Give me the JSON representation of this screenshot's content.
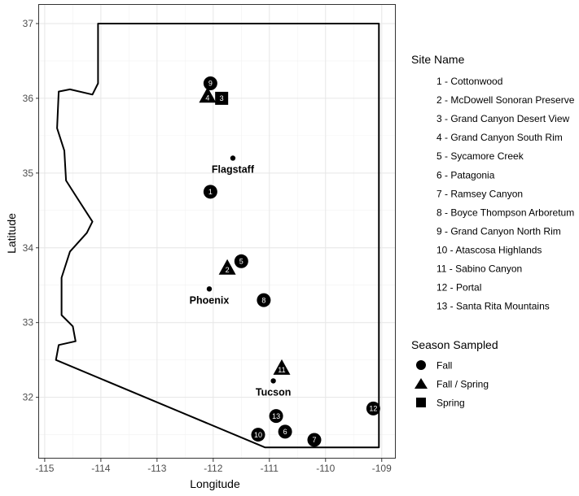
{
  "chart_data": {
    "type": "scatter",
    "xlabel": "Longitude",
    "ylabel": "Latitude",
    "xlim": [
      -115.1,
      -108.75
    ],
    "ylim": [
      31.18,
      37.25
    ],
    "xticks": [
      -115,
      -114,
      -113,
      -112,
      -111,
      -110,
      -109
    ],
    "yticks": [
      32,
      33,
      34,
      35,
      36,
      37
    ],
    "grid": true,
    "colors": {
      "outline": "#000000",
      "grid_major": "#e6e6e6",
      "grid_minor": "#f2f2f2",
      "panel_border": "#333333",
      "marker": "#000000",
      "marker_text": "#ffffff"
    },
    "state_outline": [
      [
        -109.05,
        37.0
      ],
      [
        -114.05,
        37.0
      ],
      [
        -114.05,
        36.2
      ],
      [
        -114.15,
        36.05
      ],
      [
        -114.55,
        36.12
      ],
      [
        -114.75,
        36.09
      ],
      [
        -114.78,
        35.6
      ],
      [
        -114.65,
        35.3
      ],
      [
        -114.62,
        34.9
      ],
      [
        -114.45,
        34.7
      ],
      [
        -114.15,
        34.35
      ],
      [
        -114.25,
        34.2
      ],
      [
        -114.55,
        33.95
      ],
      [
        -114.7,
        33.6
      ],
      [
        -114.7,
        33.1
      ],
      [
        -114.5,
        32.95
      ],
      [
        -114.45,
        32.75
      ],
      [
        -114.75,
        32.7
      ],
      [
        -114.8,
        32.5
      ],
      [
        -111.08,
        31.33
      ],
      [
        -109.05,
        31.33
      ],
      [
        -109.05,
        37.0
      ]
    ],
    "cities": [
      {
        "name": "Flagstaff",
        "lon": -111.65,
        "lat": 35.2
      },
      {
        "name": "Phoenix",
        "lon": -112.07,
        "lat": 33.45
      },
      {
        "name": "Tucson",
        "lon": -110.93,
        "lat": 32.22
      }
    ],
    "sites": [
      {
        "id": "1",
        "lon": -112.05,
        "lat": 34.75,
        "season": "Fall"
      },
      {
        "id": "2",
        "lon": -111.75,
        "lat": 33.72,
        "season": "Fall / Spring"
      },
      {
        "id": "3",
        "lon": -111.85,
        "lat": 36.0,
        "season": "Spring"
      },
      {
        "id": "4",
        "lon": -112.1,
        "lat": 36.02,
        "season": "Fall / Spring"
      },
      {
        "id": "5",
        "lon": -111.5,
        "lat": 33.82,
        "season": "Fall"
      },
      {
        "id": "6",
        "lon": -110.72,
        "lat": 31.54,
        "season": "Fall"
      },
      {
        "id": "7",
        "lon": -110.2,
        "lat": 31.43,
        "season": "Fall"
      },
      {
        "id": "8",
        "lon": -111.1,
        "lat": 33.3,
        "season": "Fall"
      },
      {
        "id": "9",
        "lon": -112.05,
        "lat": 36.2,
        "season": "Fall"
      },
      {
        "id": "10",
        "lon": -111.2,
        "lat": 31.5,
        "season": "Fall"
      },
      {
        "id": "11",
        "lon": -110.78,
        "lat": 32.38,
        "season": "Fall / Spring"
      },
      {
        "id": "12",
        "lon": -109.15,
        "lat": 31.85,
        "season": "Fall"
      },
      {
        "id": "13",
        "lon": -110.88,
        "lat": 31.75,
        "season": "Fall"
      }
    ]
  },
  "legend": {
    "site_title": "Site Name",
    "site_items": [
      "1 - Cottonwood",
      "2 - McDowell Sonoran Preserve",
      "3 - Grand Canyon Desert View",
      "4 - Grand Canyon South Rim",
      "5 - Sycamore Creek",
      "6 - Patagonia",
      "7 - Ramsey Canyon",
      "8 - Boyce Thompson Arboretum",
      "9 - Grand Canyon North Rim",
      "10 - Atascosa Highlands",
      "11 - Sabino Canyon",
      "12 - Portal",
      "13 - Santa Rita Mountains"
    ],
    "season_title": "Season Sampled",
    "season_items": [
      {
        "label": "Fall",
        "shape": "circle"
      },
      {
        "label": "Fall / Spring",
        "shape": "triangle"
      },
      {
        "label": "Spring",
        "shape": "square"
      }
    ]
  }
}
